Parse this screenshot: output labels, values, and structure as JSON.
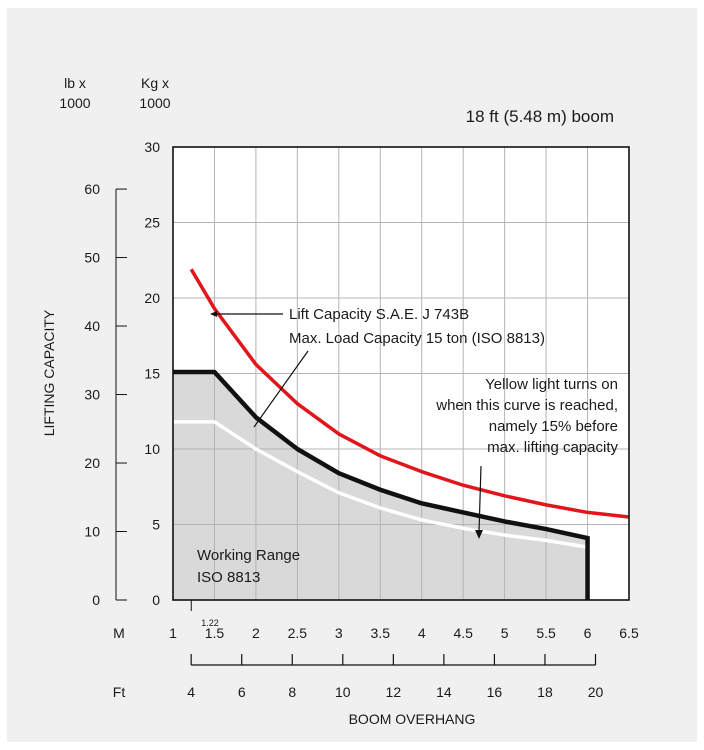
{
  "title": "18 ft (5.48 m) boom",
  "left_unit_lb": [
    "lb x",
    "1000"
  ],
  "left_unit_kg": [
    "Kg x",
    "1000"
  ],
  "ylabel": "LIFTING CAPACITY",
  "xlabel": "BOOM OVERHANG",
  "m_axis_label": "M",
  "ft_axis_label": "Ft",
  "small_label": "1.22",
  "annotations": {
    "red_curve": [
      "Lift Capacity S.A.E. J 743B",
      "Max. Load Capacity 15 ton (ISO 8813)"
    ],
    "yellow_light": [
      "Yellow light turns on",
      "when this curve is reached,",
      "namely 15% before",
      "max. lifting capacity"
    ],
    "working_range": [
      "Working Range",
      "ISO 8813"
    ]
  },
  "chart_data": {
    "type": "line",
    "x_unit": "m",
    "xlim": [
      1,
      6.5
    ],
    "ylim_kg": [
      0,
      30
    ],
    "x_ticks_m": [
      "1",
      "1.5",
      "2",
      "2.5",
      "3",
      "3.5",
      "4",
      "4.5",
      "5",
      "5.5",
      "6",
      "6.5"
    ],
    "y_ticks_kg": [
      "0",
      "5",
      "10",
      "15",
      "20",
      "25",
      "30"
    ],
    "y_ticks_lb": [
      "0",
      "10",
      "20",
      "30",
      "40",
      "50",
      "60"
    ],
    "ft_ticks": [
      "4",
      "6",
      "8",
      "10",
      "12",
      "14",
      "16",
      "18",
      "20"
    ],
    "grid": true,
    "series": [
      {
        "key": "lift_capacity",
        "color": "#e0161b",
        "points": [
          [
            1.22,
            21.9
          ],
          [
            1.5,
            19.3
          ],
          [
            2,
            15.6
          ],
          [
            2.5,
            13.0
          ],
          [
            3,
            11.0
          ],
          [
            3.5,
            9.55
          ],
          [
            4,
            8.5
          ],
          [
            4.5,
            7.6
          ],
          [
            5,
            6.9
          ],
          [
            5.5,
            6.3
          ],
          [
            6,
            5.8
          ],
          [
            6.5,
            5.5
          ]
        ]
      },
      {
        "key": "max_load",
        "color": "#111111",
        "points": [
          [
            1,
            15.1
          ],
          [
            1.5,
            15.1
          ],
          [
            2,
            12.1
          ],
          [
            2.5,
            10.0
          ],
          [
            3,
            8.4
          ],
          [
            3.5,
            7.3
          ],
          [
            4,
            6.4
          ],
          [
            4.5,
            5.8
          ],
          [
            5,
            5.2
          ],
          [
            5.5,
            4.7
          ],
          [
            6,
            4.1
          ]
        ]
      },
      {
        "key": "yellow_light",
        "color": "#ffffff",
        "points": [
          [
            1,
            11.8
          ],
          [
            1.5,
            11.8
          ],
          [
            2,
            10.0
          ],
          [
            2.5,
            8.5
          ],
          [
            3,
            7.1
          ],
          [
            3.5,
            6.1
          ],
          [
            4,
            5.3
          ],
          [
            4.5,
            4.75
          ],
          [
            5,
            4.3
          ],
          [
            5.5,
            3.95
          ],
          [
            6,
            3.5
          ]
        ]
      }
    ]
  }
}
